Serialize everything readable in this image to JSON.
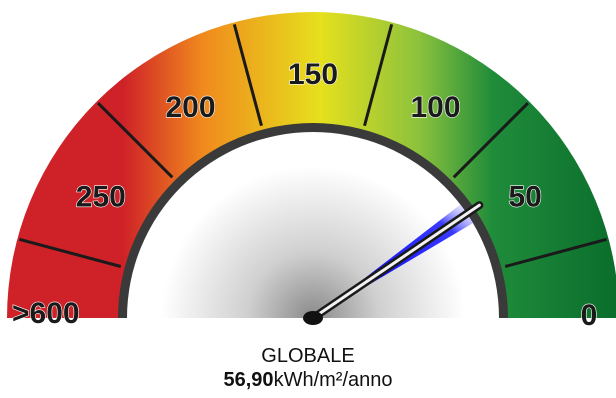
{
  "chart_data": {
    "type": "gauge",
    "title": "GLOBALE",
    "value": 56.9,
    "value_label": "56,90",
    "unit": "kWh/m²/anno",
    "scale": [
      {
        "label": "0",
        "value": 0
      },
      {
        "label": "50",
        "value": 50
      },
      {
        "label": "100",
        "value": 100
      },
      {
        "label": "150",
        "value": 150
      },
      {
        "label": "200",
        "value": 200
      },
      {
        "label": "250",
        "value": 250
      },
      {
        "label": ">600",
        "value": 300
      }
    ],
    "range": [
      0,
      300
    ],
    "color_bands": [
      "#0d7a31",
      "#49a33a",
      "#e3dc1f",
      "#f39a1a",
      "#cf2228"
    ]
  }
}
